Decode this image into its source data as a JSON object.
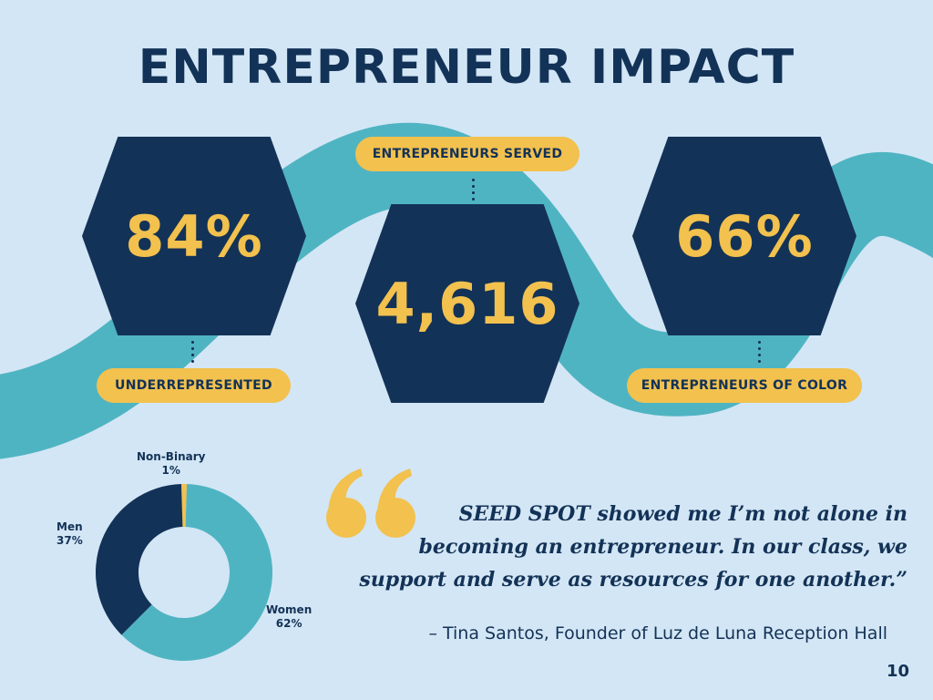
{
  "title": "ENTREPRENEUR IMPACT",
  "stats": [
    {
      "value": "84%",
      "label": "UNDERREPRESENTED"
    },
    {
      "value": "4,616",
      "label": "ENTREPRENEURS SERVED"
    },
    {
      "value": "66%",
      "label": "ENTREPRENEURS OF COLOR"
    }
  ],
  "colors": {
    "background": "#d3e6f5",
    "navy": "#133257",
    "gold": "#f2c14e",
    "teal": "#4fb4c2"
  },
  "gender_breakdown": {
    "segments": [
      {
        "name": "Non-Binary",
        "percent_label": "1%",
        "value": 1,
        "color": "#f2c14e"
      },
      {
        "name": "Women",
        "percent_label": "62%",
        "value": 62,
        "color": "#4fb4c2"
      },
      {
        "name": "Men",
        "percent_label": "37%",
        "value": 37,
        "color": "#133257"
      }
    ]
  },
  "quote": {
    "text": "SEED SPOT showed me I’m not alone in becoming an entrepreneur. In our class, we support and serve as resources for one another.”",
    "attribution": "– Tina Santos, Founder of Luz de Luna Reception Hall"
  },
  "page_number": "10"
}
